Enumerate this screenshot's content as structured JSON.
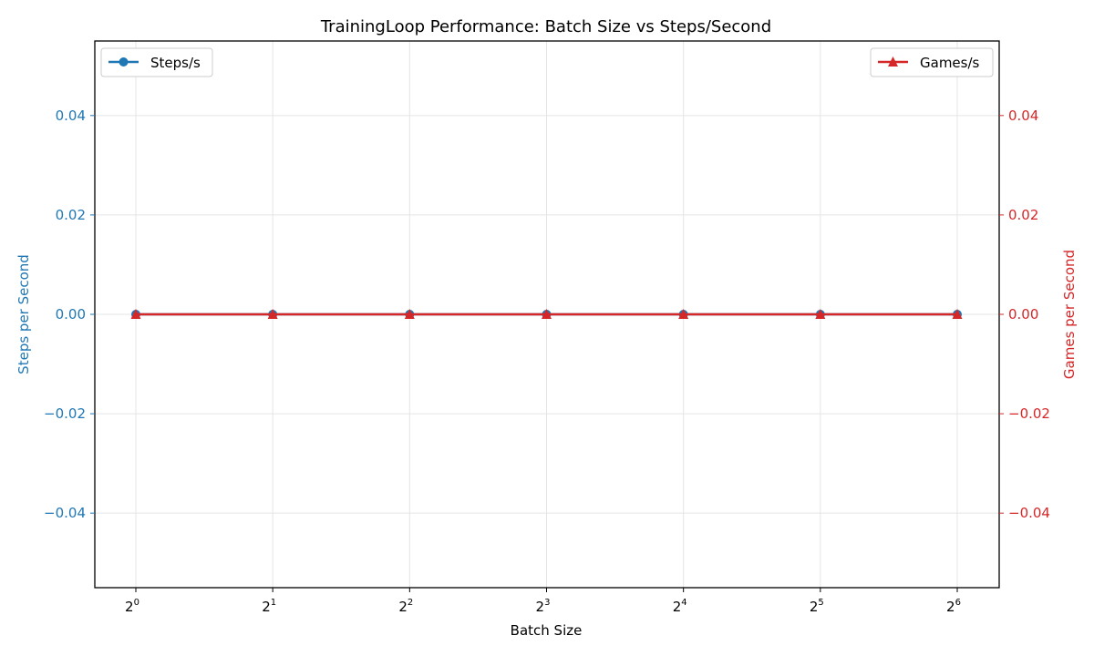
{
  "chart_data": {
    "type": "line",
    "title": "TrainingLoop Performance: Batch Size vs Steps/Second",
    "xlabel": "Batch Size",
    "x_scale": "log2",
    "x": [
      1,
      2,
      4,
      8,
      16,
      32,
      64
    ],
    "x_tick_labels": [
      {
        "base": "2",
        "exp": "0"
      },
      {
        "base": "2",
        "exp": "1"
      },
      {
        "base": "2",
        "exp": "2"
      },
      {
        "base": "2",
        "exp": "3"
      },
      {
        "base": "2",
        "exp": "4"
      },
      {
        "base": "2",
        "exp": "5"
      },
      {
        "base": "2",
        "exp": "6"
      }
    ],
    "ylabel_left": "Steps per Second",
    "ylabel_right": "Games per Second",
    "ylim": [
      -0.055,
      0.055
    ],
    "y_ticks": [
      -0.04,
      -0.02,
      0.0,
      0.02,
      0.04
    ],
    "y_tick_labels": [
      "−0.04",
      "−0.02",
      "0.00",
      "0.02",
      "0.04"
    ],
    "grid": true,
    "series": [
      {
        "name": "Steps/s",
        "axis": "left",
        "marker": "circle",
        "color": "#1f77b4",
        "values": [
          0,
          0,
          0,
          0,
          0,
          0,
          0
        ],
        "legend_position": "top-left"
      },
      {
        "name": "Games/s",
        "axis": "right",
        "marker": "triangle",
        "color": "#d62728",
        "values": [
          0,
          0,
          0,
          0,
          0,
          0,
          0
        ],
        "legend_position": "top-right"
      }
    ]
  }
}
